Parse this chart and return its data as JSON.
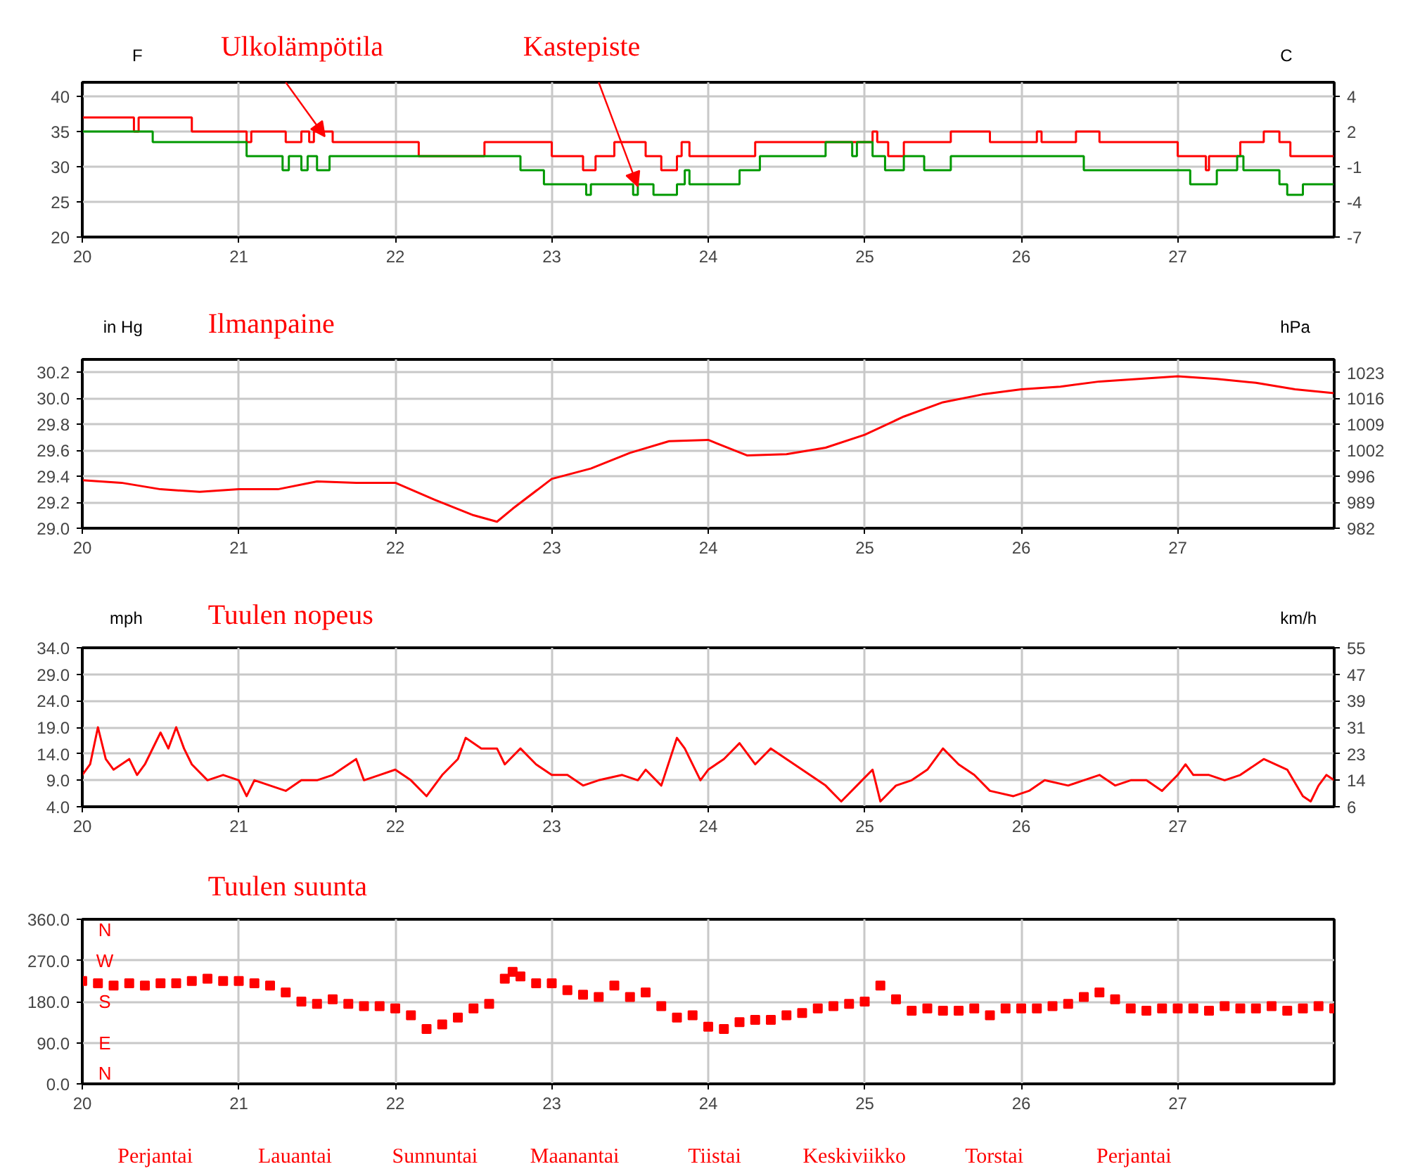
{
  "chart_data": [
    {
      "type": "step",
      "ylabel": "F",
      "y2label": "C",
      "grid": true,
      "xlim": [
        20,
        28
      ],
      "xticks": [
        20,
        21,
        22,
        23,
        24,
        25,
        26,
        27
      ],
      "ylim": [
        20,
        42
      ],
      "yticks": [
        20,
        25,
        30,
        35,
        40
      ],
      "y2lim": [
        -6.67,
        5.56
      ],
      "y2ticks": [
        {
          "value": -6.67,
          "label": "-7"
        },
        {
          "value": -3.89,
          "label": "-4"
        },
        {
          "value": -1.11,
          "label": "-1"
        },
        {
          "value": 1.67,
          "label": "2"
        },
        {
          "value": 4.44,
          "label": "4"
        }
      ],
      "series": [
        {
          "color": "#ff0000",
          "x": [
            20,
            20.33,
            20.36,
            20.7,
            21.05,
            21.08,
            21.3,
            21.4,
            21.45,
            21.48,
            21.6,
            22.15,
            22.57,
            23.0,
            23.2,
            23.28,
            23.4,
            23.6,
            23.7,
            23.8,
            23.83,
            23.88,
            24.3,
            25.05,
            25.08,
            25.15,
            25.25,
            25.55,
            25.8,
            26.1,
            26.13,
            26.35,
            26.5,
            27.0,
            27.18,
            27.2,
            27.4,
            27.55,
            27.65,
            27.72,
            28
          ],
          "values": [
            37,
            35,
            37,
            35,
            33.5,
            35,
            33.5,
            35,
            33.5,
            35,
            33.5,
            31.5,
            33.5,
            31.5,
            29.5,
            31.5,
            33.5,
            31.5,
            29.5,
            31.5,
            33.5,
            31.5,
            33.5,
            35,
            33.5,
            31.5,
            33.5,
            35,
            33.5,
            35,
            33.5,
            35,
            33.5,
            31.5,
            29.5,
            31.5,
            33.5,
            35,
            33.5,
            31.5,
            31.5
          ]
        },
        {
          "color": "#009900",
          "x": [
            20,
            20.45,
            21.05,
            21.28,
            21.32,
            21.4,
            21.44,
            21.5,
            21.58,
            22.8,
            22.95,
            23.22,
            23.25,
            23.52,
            23.55,
            23.65,
            23.8,
            23.85,
            23.88,
            24.2,
            24.33,
            24.75,
            24.92,
            24.95,
            25.05,
            25.13,
            25.25,
            25.38,
            25.55,
            26.4,
            27.08,
            27.25,
            27.38,
            27.42,
            27.65,
            27.7,
            27.8,
            28
          ],
          "values": [
            35,
            33.5,
            31.5,
            29.5,
            31.5,
            29.5,
            31.5,
            29.5,
            31.5,
            29.5,
            27.5,
            26,
            27.5,
            26,
            27.5,
            26,
            27.5,
            29.5,
            27.5,
            29.5,
            31.5,
            33.5,
            31.5,
            33.5,
            31.5,
            29.5,
            31.5,
            29.5,
            31.5,
            29.5,
            27.5,
            29.5,
            31.5,
            29.5,
            27.5,
            26,
            27.5,
            27.5
          ]
        }
      ],
      "annotations": [
        {
          "text": "Ulkolämpötila",
          "x": 21.55,
          "y": 34.3
        },
        {
          "text": "Kastepiste",
          "x": 23.55,
          "y": 27.2
        }
      ]
    },
    {
      "type": "line",
      "title": "Ilmanpaine",
      "ylabel": "in Hg",
      "y2label": "hPa",
      "grid": true,
      "xlim": [
        20,
        28
      ],
      "xticks": [
        20,
        21,
        22,
        23,
        24,
        25,
        26,
        27
      ],
      "ylim": [
        29.0,
        30.3
      ],
      "yticks": [
        {
          "value": 29.0,
          "label": "29.0"
        },
        29.2,
        29.4,
        29.6,
        29.8,
        {
          "value": 30.0,
          "label": "30.0"
        },
        30.2
      ],
      "y2lim": [
        982.05,
        1026.1
      ],
      "y2ticks": [
        {
          "value": 982.05,
          "label": "982"
        },
        {
          "value": 988.82,
          "label": "989"
        },
        {
          "value": 995.6,
          "label": "996"
        },
        {
          "value": 1002.37,
          "label": "1002"
        },
        {
          "value": 1009.14,
          "label": "1009"
        },
        {
          "value": 1015.92,
          "label": "1016"
        },
        {
          "value": 1022.69,
          "label": "1023"
        }
      ],
      "series": [
        {
          "color": "#ff0000",
          "x": [
            20,
            20.25,
            20.5,
            20.75,
            21,
            21.25,
            21.5,
            21.75,
            22,
            22.25,
            22.5,
            22.65,
            22.75,
            23,
            23.25,
            23.5,
            23.75,
            24,
            24.25,
            24.5,
            24.75,
            25,
            25.25,
            25.5,
            25.75,
            26,
            26.25,
            26.5,
            26.75,
            27,
            27.25,
            27.5,
            27.75,
            28
          ],
          "values": [
            29.37,
            29.35,
            29.3,
            29.28,
            29.3,
            29.3,
            29.36,
            29.35,
            29.35,
            29.22,
            29.1,
            29.05,
            29.15,
            29.38,
            29.46,
            29.58,
            29.67,
            29.68,
            29.56,
            29.57,
            29.62,
            29.72,
            29.86,
            29.97,
            30.03,
            30.07,
            30.09,
            30.13,
            30.15,
            30.17,
            30.15,
            30.12,
            30.07,
            30.04
          ]
        }
      ]
    },
    {
      "type": "line",
      "title": "Tuulen nopeus",
      "ylabel": "mph",
      "y2label": "km/h",
      "grid": true,
      "xlim": [
        20,
        28
      ],
      "xticks": [
        20,
        21,
        22,
        23,
        24,
        25,
        26,
        27
      ],
      "ylim": [
        4,
        34
      ],
      "yticks": [
        {
          "value": 4,
          "label": "4.0"
        },
        {
          "value": 9,
          "label": "9.0"
        },
        {
          "value": 14,
          "label": "14.0"
        },
        {
          "value": 19,
          "label": "19.0"
        },
        {
          "value": 24,
          "label": "24.0"
        },
        {
          "value": 29,
          "label": "29.0"
        },
        {
          "value": 34,
          "label": "34.0"
        }
      ],
      "y2lim": [
        6.44,
        54.72
      ],
      "y2ticks": [
        {
          "value": 6.44,
          "label": "6"
        },
        {
          "value": 14.48,
          "label": "14"
        },
        {
          "value": 22.53,
          "label": "23"
        },
        {
          "value": 30.58,
          "label": "31"
        },
        {
          "value": 38.62,
          "label": "39"
        },
        {
          "value": 46.67,
          "label": "47"
        },
        {
          "value": 54.72,
          "label": "55"
        }
      ],
      "series": [
        {
          "color": "#ff0000",
          "x": [
            20,
            20.05,
            20.1,
            20.15,
            20.2,
            20.3,
            20.35,
            20.4,
            20.5,
            20.55,
            20.6,
            20.65,
            20.7,
            20.8,
            20.9,
            21,
            21.05,
            21.1,
            21.2,
            21.3,
            21.4,
            21.5,
            21.6,
            21.7,
            21.75,
            21.8,
            21.9,
            22,
            22.1,
            22.2,
            22.3,
            22.4,
            22.45,
            22.55,
            22.65,
            22.7,
            22.8,
            22.9,
            23,
            23.1,
            23.2,
            23.3,
            23.45,
            23.55,
            23.6,
            23.7,
            23.8,
            23.85,
            23.95,
            24,
            24.1,
            24.2,
            24.3,
            24.4,
            24.5,
            24.6,
            24.75,
            24.85,
            24.95,
            25.05,
            25.1,
            25.2,
            25.3,
            25.4,
            25.5,
            25.6,
            25.7,
            25.8,
            25.95,
            26.05,
            26.15,
            26.3,
            26.4,
            26.5,
            26.6,
            26.7,
            26.8,
            26.9,
            27,
            27.05,
            27.1,
            27.2,
            27.3,
            27.4,
            27.55,
            27.7,
            27.8,
            27.85,
            27.9,
            27.95,
            28
          ],
          "values": [
            10,
            12,
            19,
            13,
            11,
            13,
            10,
            12,
            18,
            15,
            19,
            15,
            12,
            9,
            10,
            9,
            6,
            9,
            8,
            7,
            9,
            9,
            10,
            12,
            13,
            9,
            10,
            11,
            9,
            6,
            10,
            13,
            17,
            15,
            15,
            12,
            15,
            12,
            10,
            10,
            8,
            9,
            10,
            9,
            11,
            8,
            17,
            15,
            9,
            11,
            13,
            16,
            12,
            15,
            13,
            11,
            8,
            5,
            8,
            11,
            5,
            8,
            9,
            11,
            15,
            12,
            10,
            7,
            6,
            7,
            9,
            8,
            9,
            10,
            8,
            9,
            9,
            7,
            10,
            12,
            10,
            10,
            9,
            10,
            13,
            11,
            6,
            5,
            8,
            10,
            9
          ]
        }
      ]
    },
    {
      "type": "scatter",
      "title": "Tuulen suunta",
      "grid": true,
      "marker": "square",
      "xlim": [
        20,
        28
      ],
      "xticks": [
        20,
        21,
        22,
        23,
        24,
        25,
        26,
        27
      ],
      "ylim": [
        0,
        360
      ],
      "yticks": [
        {
          "value": 0,
          "label": "0.0"
        },
        {
          "value": 90,
          "label": "90.0"
        },
        {
          "value": 180,
          "label": "180.0"
        },
        {
          "value": 270,
          "label": "270.0"
        },
        {
          "value": 360,
          "label": "360.0"
        }
      ],
      "series": [
        {
          "color": "#ff0000",
          "x": [
            20,
            20.1,
            20.2,
            20.3,
            20.4,
            20.5,
            20.6,
            20.7,
            20.8,
            20.9,
            21,
            21.1,
            21.2,
            21.3,
            21.4,
            21.5,
            21.6,
            21.7,
            21.8,
            21.9,
            22,
            22.1,
            22.2,
            22.3,
            22.4,
            22.5,
            22.6,
            22.7,
            22.75,
            22.8,
            22.9,
            23,
            23.1,
            23.2,
            23.3,
            23.4,
            23.5,
            23.6,
            23.7,
            23.8,
            23.9,
            24,
            24.1,
            24.2,
            24.3,
            24.4,
            24.5,
            24.6,
            24.7,
            24.8,
            24.9,
            25,
            25.1,
            25.2,
            25.3,
            25.4,
            25.5,
            25.6,
            25.7,
            25.8,
            25.9,
            26,
            26.1,
            26.2,
            26.3,
            26.4,
            26.5,
            26.6,
            26.7,
            26.8,
            26.9,
            27,
            27.1,
            27.2,
            27.3,
            27.4,
            27.5,
            27.6,
            27.7,
            27.8,
            27.9,
            28
          ],
          "values": [
            225,
            220,
            215,
            220,
            215,
            220,
            220,
            225,
            230,
            225,
            225,
            220,
            215,
            200,
            180,
            175,
            185,
            175,
            170,
            170,
            165,
            150,
            120,
            130,
            145,
            165,
            175,
            230,
            245,
            235,
            220,
            220,
            205,
            195,
            190,
            215,
            190,
            200,
            170,
            145,
            150,
            125,
            120,
            135,
            140,
            140,
            150,
            155,
            165,
            170,
            175,
            180,
            215,
            185,
            160,
            165,
            160,
            160,
            165,
            150,
            165,
            165,
            165,
            170,
            175,
            190,
            200,
            185,
            165,
            160,
            165,
            165,
            165,
            160,
            170,
            165,
            165,
            170,
            160,
            165,
            170,
            165
          ]
        }
      ],
      "annotations": [
        "N",
        "W",
        "S",
        "E",
        "N"
      ]
    },
    {
      "type": "other",
      "annotations": [
        "Perjantai",
        "Lauantai",
        "Sunnuntai",
        "Maanantai",
        "Tiistai",
        "Keskiviikko",
        "Torstai",
        "Perjantai"
      ]
    }
  ]
}
